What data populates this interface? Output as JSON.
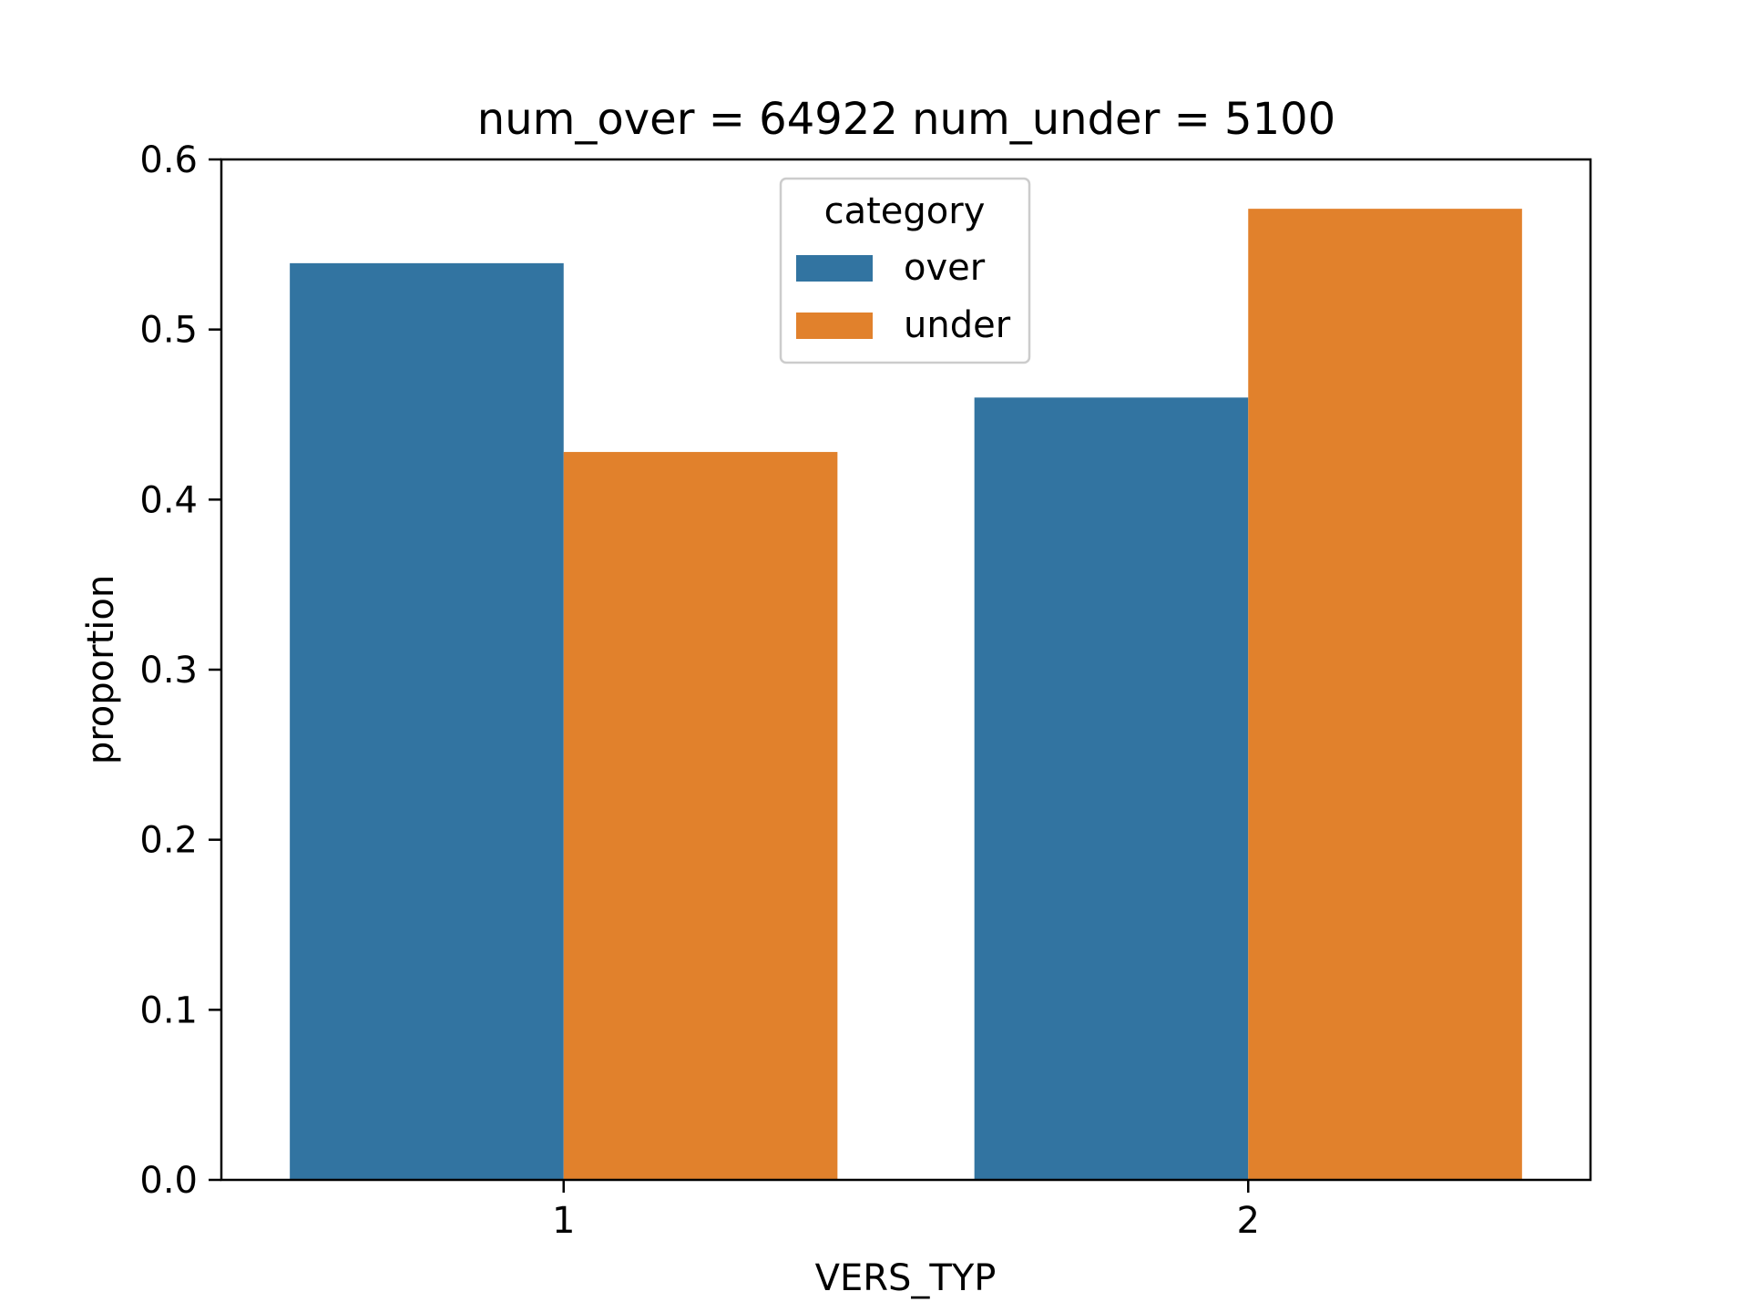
{
  "chart_data": {
    "type": "bar",
    "title": "num_over = 64922  num_under = 5100",
    "xlabel": "VERS_TYP",
    "ylabel": "proportion",
    "categories": [
      "1",
      "2"
    ],
    "series": [
      {
        "name": "over",
        "color": "#3274a1",
        "values": [
          0.539,
          0.46
        ]
      },
      {
        "name": "under",
        "color": "#e1812c",
        "values": [
          0.428,
          0.571
        ]
      }
    ],
    "ylim": [
      0,
      0.6
    ],
    "yticks": [
      "0.0",
      "0.1",
      "0.2",
      "0.3",
      "0.4",
      "0.5",
      "0.6"
    ],
    "grid": false,
    "legend": {
      "title": "category",
      "placement": "top-center"
    }
  }
}
